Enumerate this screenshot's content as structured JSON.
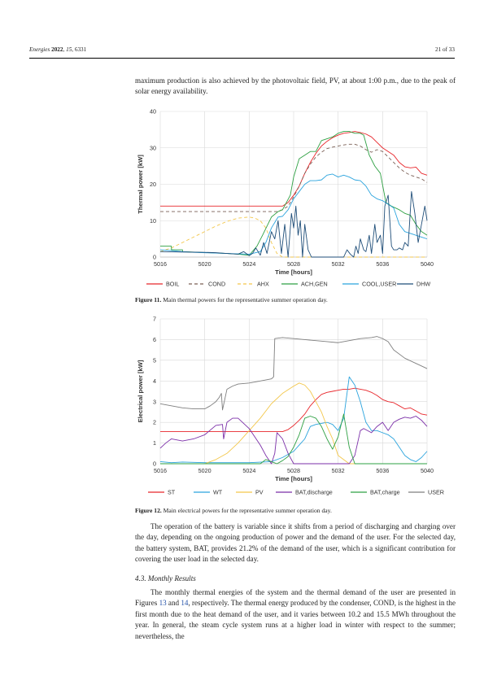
{
  "header": {
    "left": "Energies 2022, 15, 6331",
    "right": "21 of 33"
  },
  "intro_text": "maximum production is also achieved by the photovoltaic field, PV, at about 1:00 p.m., due to the peak of solar energy availability.",
  "figure11": {
    "label": "Figure 11.",
    "caption": "Main thermal powers for the representative summer operation day."
  },
  "figure12": {
    "label": "Figure 12.",
    "caption": "Main electrical powers for the representative summer operation day."
  },
  "body_paragraph": "The operation of the battery is variable since it shifts from a period of discharging and charging over the day, depending on the ongoing production of power and the demand of the user. For the selected day, the battery system, BAT, provides 21.2% of the demand of the user, which is a significant contribution for covering the user load in the selected day.",
  "section": {
    "title": "4.3. Monthly Results"
  },
  "monthly_paragraph": {
    "p1": "The monthly thermal energies of the system and the thermal demand of the user are presented in Figures ",
    "ref1": "13",
    "p2": " and ",
    "ref2": "14",
    "p3": ", respectively. The thermal energy produced by the condenser, COND, is the highest in the first month due to the heat demand of the user, and it varies between 10.2 and 15.5 MWh throughout the year. In general, the steam cycle system runs at a higher load in winter with respect to the summer; nevertheless, the"
  },
  "chart_data": [
    {
      "type": "line",
      "xlabel": "Time [hours]",
      "ylabel": "Thermal power [kW]",
      "xlim": [
        5016,
        5040
      ],
      "ylim": [
        0,
        40
      ],
      "xticks": [
        5016,
        5020,
        5024,
        5028,
        5032,
        5036,
        5040
      ],
      "yticks": [
        0,
        10,
        20,
        30,
        40
      ],
      "grid": true,
      "legend": "bottom",
      "series": [
        {
          "name": "BOIL",
          "color": "#e8262b",
          "dash": "solid",
          "x": [
            5016,
            5026,
            5026.5,
            5027,
            5027.5,
            5028,
            5028.5,
            5029,
            5029.5,
            5030,
            5030.5,
            5031,
            5031.5,
            5032,
            5032.5,
            5033,
            5033.5,
            5034,
            5034.5,
            5035,
            5035.5,
            5036,
            5036.5,
            5037,
            5037.5,
            5038,
            5038.5,
            5039,
            5039.5,
            5040
          ],
          "y": [
            14,
            14,
            14,
            14,
            15,
            17,
            19.5,
            23,
            26,
            28.5,
            30.5,
            31.8,
            32.8,
            33.5,
            34,
            34.2,
            34.5,
            34.2,
            33.8,
            33,
            31.5,
            30,
            29,
            28,
            26,
            24.8,
            24.5,
            24.7,
            23,
            22.5
          ]
        },
        {
          "name": "COND",
          "color": "#7a5f55",
          "dash": "4,3",
          "x": [
            5016,
            5026,
            5026.5,
            5027,
            5027.5,
            5028,
            5028.5,
            5029,
            5029.5,
            5030,
            5030.5,
            5031,
            5031.5,
            5032,
            5032.5,
            5033,
            5033.5,
            5034,
            5034.5,
            5035,
            5035.5,
            5036,
            5036.5,
            5037,
            5037.5,
            5038,
            5038.5,
            5039,
            5039.5,
            5040
          ],
          "y": [
            12.5,
            12.5,
            12.5,
            13,
            14,
            16.5,
            19.5,
            23,
            25.5,
            27.5,
            28.8,
            29.8,
            30.2,
            30.5,
            30.8,
            31,
            31,
            30.5,
            29.5,
            28.8,
            29.5,
            29,
            27.5,
            26,
            24.5,
            23.3,
            22.5,
            22,
            21.5,
            20.5
          ]
        },
        {
          "name": "AHX",
          "color": "#f3c74b",
          "dash": "4,3",
          "x": [
            5016,
            5017,
            5018,
            5019,
            5020,
            5021,
            5022,
            5023,
            5024,
            5024.5,
            5025,
            5025.5,
            5026,
            5026.5,
            5027,
            5040
          ],
          "y": [
            1.5,
            2.5,
            4,
            5.5,
            7,
            8.5,
            9.8,
            10.7,
            11,
            10.7,
            10,
            8,
            4,
            1,
            0,
            0
          ]
        },
        {
          "name": "ACH,GEN",
          "color": "#2ea043",
          "dash": "solid",
          "x": [
            5016,
            5017,
            5017.01,
            5018,
            5018.01,
            5022,
            5023,
            5024,
            5024.7,
            5025.2,
            5026,
            5026.6,
            5027,
            5027.7,
            5028,
            5028.5,
            5029,
            5029.5,
            5030,
            5030.5,
            5031,
            5031.5,
            5032,
            5032.5,
            5033,
            5033.5,
            5034,
            5034.3,
            5034.8,
            5035.3,
            5035.8,
            5036.3,
            5036.8,
            5037.5,
            5038,
            5038.5,
            5039,
            5039.5,
            5040
          ],
          "y": [
            3,
            3,
            2,
            2,
            1.5,
            1,
            0.8,
            0.5,
            3,
            6,
            11,
            12.5,
            13,
            17,
            22,
            27,
            28,
            29,
            29,
            32,
            32.5,
            33,
            34,
            34.5,
            34.5,
            34,
            34,
            33.5,
            28,
            25,
            23,
            15,
            14,
            13,
            12,
            11.5,
            9,
            7,
            6
          ]
        },
        {
          "name": "COOL,USER",
          "color": "#2aa3dd",
          "dash": "solid",
          "x": [
            5016,
            5017,
            5018,
            5019,
            5020,
            5022,
            5024,
            5025,
            5025.5,
            5026,
            5026.6,
            5027,
            5027.5,
            5028,
            5028.5,
            5029,
            5029.5,
            5030,
            5030.5,
            5031,
            5031.5,
            5032,
            5032.5,
            5033,
            5033.5,
            5034,
            5034.5,
            5035,
            5035.5,
            5036,
            5036.5,
            5037,
            5037.5,
            5038,
            5038.5,
            5039,
            5039.5,
            5040
          ],
          "y": [
            2,
            1.8,
            1.5,
            1.3,
            1.2,
            1,
            0.8,
            1.5,
            4,
            8,
            11,
            11.2,
            13,
            16,
            18,
            20,
            21,
            21,
            21.2,
            22.5,
            22.8,
            22,
            22.5,
            22,
            21.2,
            21,
            19.5,
            17,
            16,
            15.5,
            14.5,
            13.5,
            9,
            7,
            6.5,
            6,
            5.5,
            5
          ]
        },
        {
          "name": "DHW",
          "color": "#1f4e79",
          "dash": "solid",
          "x": [
            5016,
            5018,
            5020,
            5021,
            5022,
            5023,
            5023.5,
            5024,
            5024.3,
            5024.6,
            5025,
            5025.3,
            5025.6,
            5026,
            5026.3,
            5026.6,
            5026.9,
            5027.2,
            5027.5,
            5027.8,
            5028,
            5028.2,
            5028.4,
            5028.6,
            5028.8,
            5029,
            5029.3,
            5029.6,
            5030,
            5030.3,
            5030.6,
            5031,
            5031.2,
            5032.5,
            5032.8,
            5033.1,
            5033.4,
            5033.6,
            5033.8,
            5034,
            5034.3,
            5034.5,
            5034.8,
            5035,
            5035.3,
            5035.5,
            5035.8,
            5036,
            5036.2,
            5036.5,
            5036.8,
            5037,
            5037.3,
            5037.5,
            5037.8,
            5038,
            5038.3,
            5038.6,
            5038.9,
            5039.2,
            5039.5,
            5039.8,
            5040
          ],
          "y": [
            1.5,
            1.4,
            1.3,
            1.2,
            1,
            0.8,
            1.5,
            0.4,
            1,
            2.5,
            0.5,
            4,
            1,
            7,
            5,
            10,
            1,
            9,
            0,
            12,
            8,
            14,
            6,
            10,
            0,
            9,
            2,
            0,
            0,
            0,
            0,
            0,
            0,
            0,
            2,
            0.8,
            0,
            3,
            1,
            5,
            2,
            1.5,
            6,
            1,
            9,
            4,
            6,
            1,
            14,
            17,
            3,
            2,
            2,
            2.5,
            2,
            4,
            3,
            18,
            12,
            4,
            9,
            14,
            10
          ]
        }
      ]
    },
    {
      "type": "line",
      "xlabel": "Time [hours]",
      "ylabel": "Electrical power [kW]",
      "xlim": [
        5016,
        5040
      ],
      "ylim": [
        0,
        7
      ],
      "xticks": [
        5016,
        5020,
        5024,
        5028,
        5032,
        5036,
        5040
      ],
      "yticks": [
        0,
        1,
        2,
        3,
        4,
        5,
        6,
        7
      ],
      "grid": true,
      "legend": "bottom",
      "series": [
        {
          "name": "ST",
          "color": "#e8262b",
          "x": [
            5016,
            5026,
            5026.5,
            5027,
            5027.5,
            5028,
            5028.5,
            5029,
            5029.5,
            5030,
            5030.5,
            5031,
            5031.5,
            5032,
            5032.5,
            5033,
            5033.5,
            5034,
            5034.5,
            5035,
            5035.5,
            5036,
            5036.5,
            5037,
            5037.5,
            5038,
            5038.5,
            5039,
            5039.5,
            5040
          ],
          "y": [
            1.55,
            1.55,
            1.55,
            1.55,
            1.65,
            1.85,
            2.1,
            2.4,
            2.8,
            3.1,
            3.35,
            3.45,
            3.5,
            3.55,
            3.6,
            3.6,
            3.65,
            3.6,
            3.55,
            3.45,
            3.3,
            3.1,
            3,
            2.95,
            2.8,
            2.65,
            2.7,
            2.55,
            2.4,
            2.35
          ]
        },
        {
          "name": "WT",
          "color": "#2aa3dd",
          "x": [
            5016,
            5017,
            5018,
            5020,
            5022,
            5024,
            5026,
            5027,
            5028,
            5028.5,
            5029,
            5029.5,
            5030,
            5030.5,
            5031,
            5031.5,
            5032,
            5032.5,
            5033,
            5033.5,
            5034,
            5034.5,
            5035,
            5035.5,
            5036,
            5036.5,
            5037,
            5037.5,
            5038,
            5038.5,
            5039,
            5039.5,
            5040
          ],
          "y": [
            0.1,
            0.05,
            0.08,
            0.05,
            0.05,
            0.05,
            0.1,
            0.3,
            0.6,
            0.9,
            1.2,
            1.8,
            1.9,
            1.95,
            2,
            1.9,
            1.6,
            2.2,
            4.2,
            3.8,
            3,
            2,
            1.6,
            1.6,
            1.5,
            1.4,
            1.2,
            0.8,
            0.4,
            0.2,
            0.1,
            0.3,
            0.6
          ]
        },
        {
          "name": "PV",
          "color": "#f3c74b",
          "x": [
            5016,
            5020,
            5021,
            5022,
            5023,
            5024,
            5025,
            5026,
            5027,
            5028,
            5028.5,
            5029,
            5029.5,
            5030,
            5030.5,
            5031,
            5031.5,
            5032,
            5033,
            5034,
            5040
          ],
          "y": [
            0,
            0,
            0.2,
            0.5,
            1,
            1.6,
            2.2,
            2.9,
            3.4,
            3.75,
            3.9,
            3.8,
            3.5,
            3,
            2.5,
            1.8,
            1.2,
            0.4,
            0,
            0,
            0
          ]
        },
        {
          "name": "BAT,discharge",
          "color": "#7b2fa8",
          "x": [
            5016,
            5016.5,
            5017,
            5018,
            5019,
            5020,
            5021,
            5021.6,
            5021.7,
            5022,
            5022.5,
            5023,
            5024,
            5025,
            5025.5,
            5026,
            5026.3,
            5026.5,
            5027,
            5027.5,
            5028,
            5029,
            5032,
            5033,
            5033.5,
            5034,
            5034.3,
            5035,
            5035.5,
            5036,
            5036.5,
            5037,
            5037.5,
            5038,
            5038.5,
            5039,
            5039.5,
            5040
          ],
          "y": [
            0.75,
            1,
            1.2,
            1.1,
            1.2,
            1.4,
            1.85,
            1.9,
            1.2,
            2,
            2.2,
            2.2,
            1.7,
            0.9,
            0.4,
            0,
            0.5,
            1.5,
            1.2,
            0.5,
            0,
            0,
            0,
            0,
            0.4,
            1.6,
            1.7,
            1.5,
            1.8,
            2,
            1.6,
            2,
            2.15,
            2.25,
            2.2,
            2.3,
            2.1,
            1.8
          ]
        },
        {
          "name": "BAT,charge",
          "color": "#2ea043",
          "x": [
            5016,
            5025,
            5025.5,
            5026,
            5026.5,
            5027,
            5027.5,
            5028,
            5028.5,
            5029,
            5029.5,
            5030,
            5030.5,
            5031,
            5031.5,
            5032,
            5032.5,
            5033,
            5033.5,
            5034,
            5034.5,
            5040
          ],
          "y": [
            0,
            0,
            0.2,
            0.1,
            0,
            0.15,
            0.35,
            0.8,
            1.4,
            2.2,
            2.3,
            2.2,
            1.8,
            1.2,
            0.7,
            1.3,
            2.4,
            0.8,
            0,
            0,
            0,
            0
          ]
        },
        {
          "name": "USER",
          "color": "#7f7f7f",
          "x": [
            5016,
            5017,
            5018,
            5019,
            5020,
            5020.5,
            5021,
            5021.3,
            5021.5,
            5021.6,
            5022,
            5022.5,
            5023,
            5024,
            5025,
            5026,
            5026.2,
            5026.3,
            5027,
            5028,
            5029,
            5030,
            5031,
            5032,
            5033,
            5034,
            5035,
            5035.5,
            5036,
            5036.5,
            5037,
            5038,
            5039,
            5040
          ],
          "y": [
            2.9,
            2.8,
            2.7,
            2.65,
            2.65,
            2.8,
            3,
            3.2,
            3.4,
            2.6,
            3.6,
            3.75,
            3.85,
            3.9,
            4,
            4.1,
            4.2,
            6.05,
            6.1,
            6.05,
            6,
            5.95,
            5.9,
            5.85,
            5.95,
            6.05,
            6.1,
            6.15,
            6.05,
            5.9,
            5.5,
            5.1,
            4.85,
            4.6
          ]
        }
      ]
    }
  ]
}
